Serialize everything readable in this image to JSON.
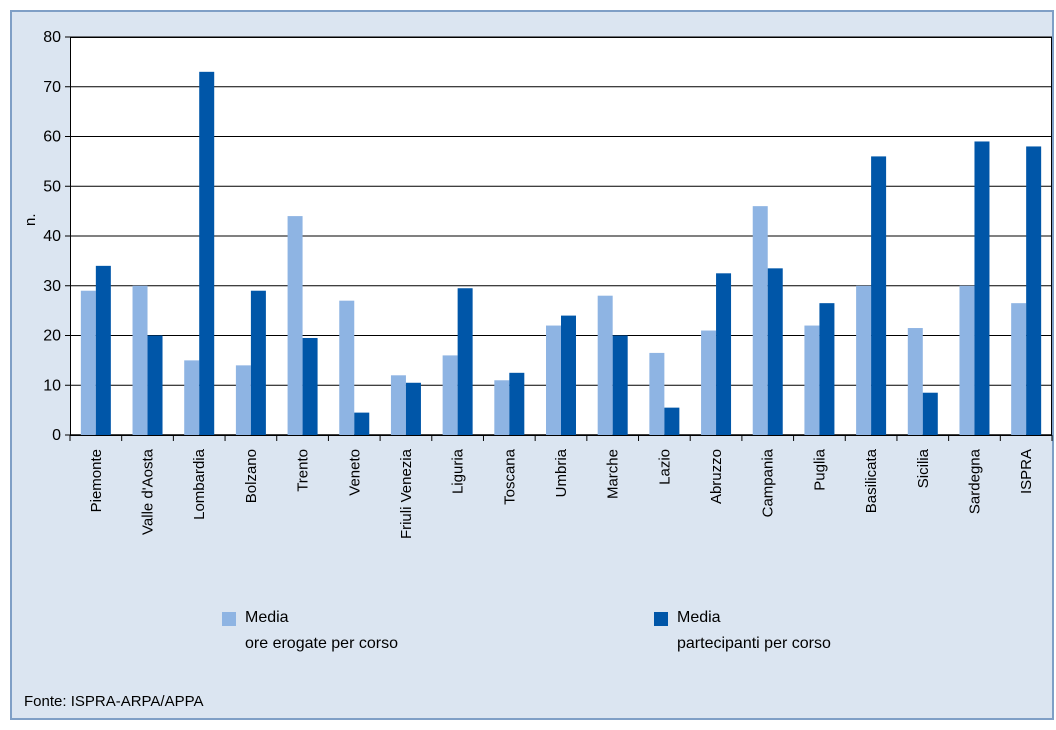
{
  "chart_data": {
    "type": "bar",
    "ylabel": "n.",
    "ylim": [
      0,
      80
    ],
    "yticks": [
      0,
      10,
      20,
      30,
      40,
      50,
      60,
      70,
      80
    ],
    "grid": true,
    "categories": [
      "Piemonte",
      "Valle d'Aosta",
      "Lombardia",
      "Bolzano",
      "Trento",
      "Veneto",
      "Friuli Venezia",
      "Liguria",
      "Toscana",
      "Umbria",
      "Marche",
      "Lazio",
      "Abruzzo",
      "Campania",
      "Puglia",
      "Basilicata",
      "Sicilia",
      "Sardegna",
      "ISPRA"
    ],
    "series": [
      {
        "name_line1": "Media",
        "name_line2": "ore erogate per corso",
        "color": "#8eb4e3",
        "values": [
          29,
          30,
          15,
          14,
          44,
          27,
          12,
          16,
          11,
          22,
          28,
          16.5,
          21,
          46,
          22,
          30,
          21.5,
          30,
          26.5
        ]
      },
      {
        "name_line1": "Media",
        "name_line2": "partecipanti per corso",
        "color": "#0056a8",
        "values": [
          34,
          20,
          73,
          29,
          19.5,
          4.5,
          10.5,
          29.5,
          12.5,
          24,
          20,
          5.5,
          32.5,
          33.5,
          26.5,
          56,
          8.5,
          59,
          58
        ]
      }
    ],
    "legend_position": "bottom"
  },
  "source": "Fonte: ISPRA-ARPA/APPA"
}
